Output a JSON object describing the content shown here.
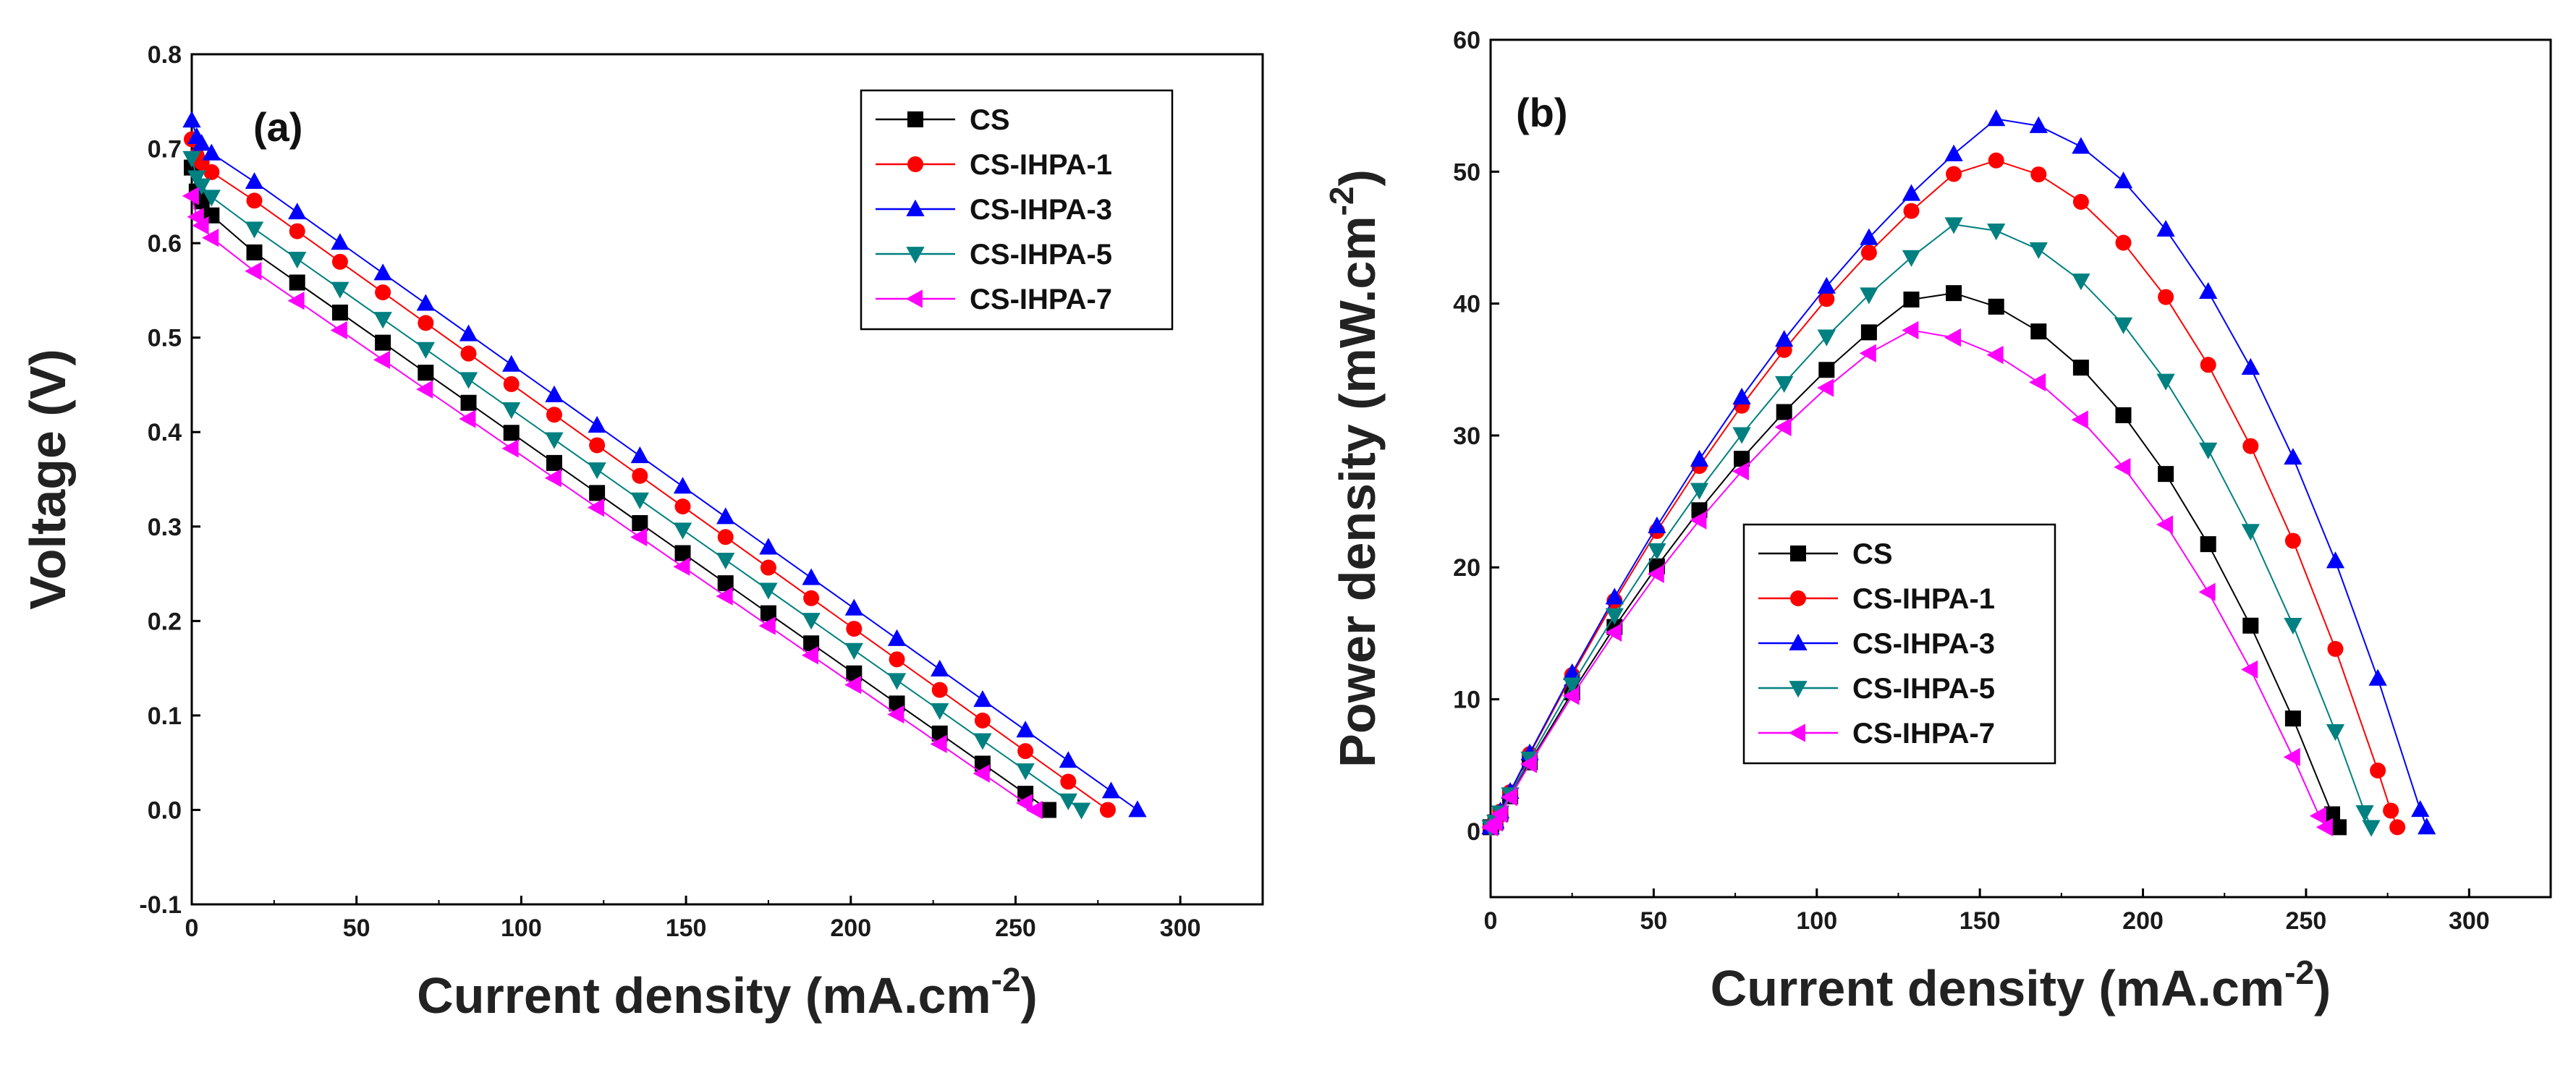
{
  "colors": {
    "CS": "#000000",
    "CS-IHPA-1": "#ff0000",
    "CS-IHPA-3": "#0000ff",
    "CS-IHPA-5": "#008080",
    "CS-IHPA-7": "#ff00ff"
  },
  "markers": {
    "CS": "square",
    "CS-IHPA-1": "circle",
    "CS-IHPA-3": "triangle-up",
    "CS-IHPA-5": "triangle-down",
    "CS-IHPA-7": "triangle-left"
  },
  "chart_data": [
    {
      "type": "line",
      "panel": "(a)",
      "xlabel_main": "Current density (mA.cm",
      "xlabel_sup": "-2",
      "xlabel_end": ")",
      "ylabel": "Voltage (V)",
      "xlim": [
        0,
        325
      ],
      "ylim": [
        -0.1,
        0.8
      ],
      "xticks": [
        "0",
        "50",
        "100",
        "150",
        "200",
        "250",
        "300"
      ],
      "yticks": [
        "-0.1",
        "0.0",
        "0.1",
        "0.2",
        "0.3",
        "0.4",
        "0.5",
        "0.6",
        "0.7",
        "0.8"
      ],
      "legend_position": "top-right",
      "series": [
        {
          "name": "CS",
          "voc": 0.68,
          "v_knee": 0.6,
          "x_end": 260
        },
        {
          "name": "CS-IHPA-1",
          "voc": 0.71,
          "v_knee": 0.655,
          "x_end": 278
        },
        {
          "name": "CS-IHPA-3",
          "voc": 0.73,
          "v_knee": 0.675,
          "x_end": 287
        },
        {
          "name": "CS-IHPA-5",
          "voc": 0.69,
          "v_knee": 0.625,
          "x_end": 270
        },
        {
          "name": "CS-IHPA-7",
          "voc": 0.65,
          "v_knee": 0.58,
          "x_end": 256
        }
      ]
    },
    {
      "type": "line",
      "panel": "(b)",
      "xlabel_main": "Current density (mA.cm",
      "xlabel_sup": "-2",
      "xlabel_end": ")",
      "ylabel_main": "Power density (mW.cm",
      "ylabel_sup": "-2",
      "ylabel_end": ")",
      "xlim": [
        0,
        325
      ],
      "ylim": [
        -5,
        60
      ],
      "xticks": [
        "0",
        "50",
        "100",
        "150",
        "200",
        "250",
        "300"
      ],
      "yticks": [
        "0",
        "10",
        "20",
        "30",
        "40",
        "50",
        "60"
      ],
      "legend_position": "bottom-left",
      "series": [
        {
          "name": "CS",
          "peak_x": 133,
          "peak_y": 41,
          "x_end": 260
        },
        {
          "name": "CS-IHPA-1",
          "peak_x": 148,
          "peak_y": 51,
          "x_end": 278
        },
        {
          "name": "CS-IHPA-3",
          "peak_x": 155,
          "peak_y": 54,
          "x_end": 287
        },
        {
          "name": "CS-IHPA-5",
          "peak_x": 142,
          "peak_y": 46,
          "x_end": 270
        },
        {
          "name": "CS-IHPA-7",
          "peak_x": 126,
          "peak_y": 38,
          "x_end": 256
        }
      ]
    }
  ]
}
